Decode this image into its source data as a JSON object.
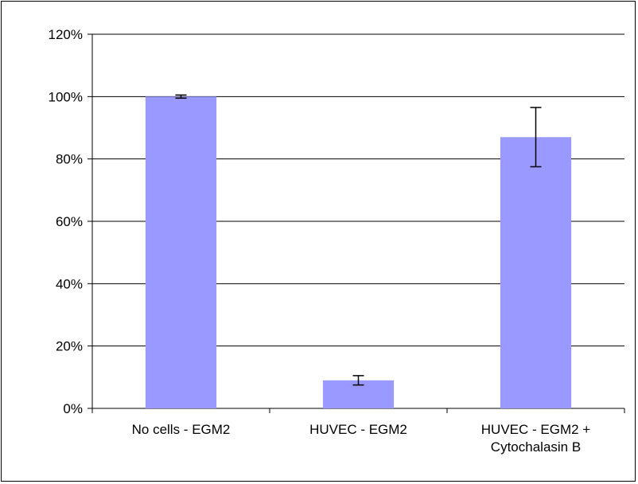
{
  "chart_data": {
    "type": "bar",
    "title": "",
    "xlabel": "",
    "ylabel": "",
    "categories": [
      [
        "No cells - EGM2"
      ],
      [
        "HUVEC - EGM2"
      ],
      [
        "HUVEC - EGM2 +",
        "Cytochalasin B"
      ]
    ],
    "values": [
      100,
      9,
      87
    ],
    "error_bars": [
      [
        99.5,
        100.5
      ],
      [
        7.5,
        10.5
      ],
      [
        77.5,
        96.5
      ]
    ],
    "ylim": [
      0,
      120
    ],
    "yticks": [
      0,
      20,
      40,
      60,
      80,
      100,
      120
    ],
    "ytick_labels": [
      "0%",
      "20%",
      "40%",
      "60%",
      "80%",
      "100%",
      "120%"
    ],
    "grid": true,
    "legend": "none",
    "bar_color": "#9999FF"
  }
}
